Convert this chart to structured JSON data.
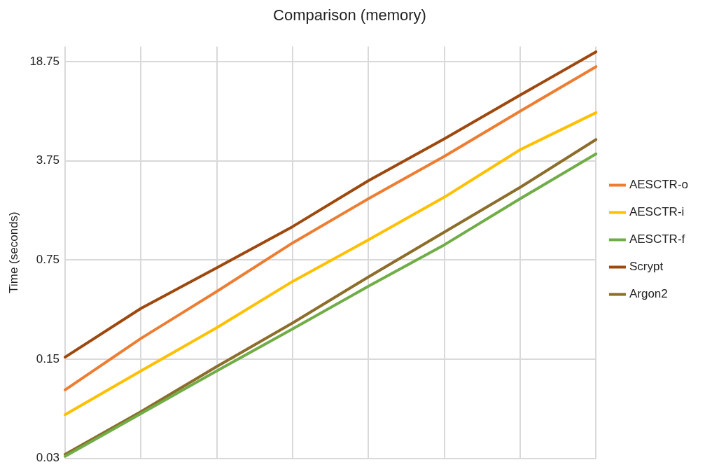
{
  "chart_data": {
    "type": "line",
    "title": "Comparison (memory)",
    "ylabel": "Time (seconds)",
    "categories": [
      null,
      null,
      null,
      null,
      null,
      null,
      null,
      null
    ],
    "series": [
      {
        "name": "AESCTR-o",
        "color": "#ed7d31",
        "values": [
          0.091,
          0.21,
          0.45,
          0.99,
          2.03,
          4.04,
          8.4,
          17.3
        ]
      },
      {
        "name": "AESCTR-i",
        "color": "#ffc000",
        "values": [
          0.061,
          0.124,
          0.25,
          0.53,
          1.04,
          2.08,
          4.5,
          8.2
        ]
      },
      {
        "name": "AESCTR-f",
        "color": "#70ad47",
        "values": [
          0.031,
          0.062,
          0.124,
          0.245,
          0.49,
          0.96,
          2.03,
          4.2
        ]
      },
      {
        "name": "Scrypt",
        "color": "#9e480e",
        "values": [
          0.155,
          0.342,
          0.66,
          1.29,
          2.72,
          5.37,
          10.9,
          22
        ]
      },
      {
        "name": "Argon2",
        "color": "#8c6d2a",
        "values": [
          0.032,
          0.064,
          0.133,
          0.27,
          0.57,
          1.18,
          2.44,
          5.3
        ]
      }
    ],
    "ylim": [
      0.03,
      24
    ],
    "yticks": [
      0.03,
      0.15,
      0.75,
      3.75,
      18.75
    ],
    "log": "y",
    "grid": true,
    "legend": "right"
  }
}
